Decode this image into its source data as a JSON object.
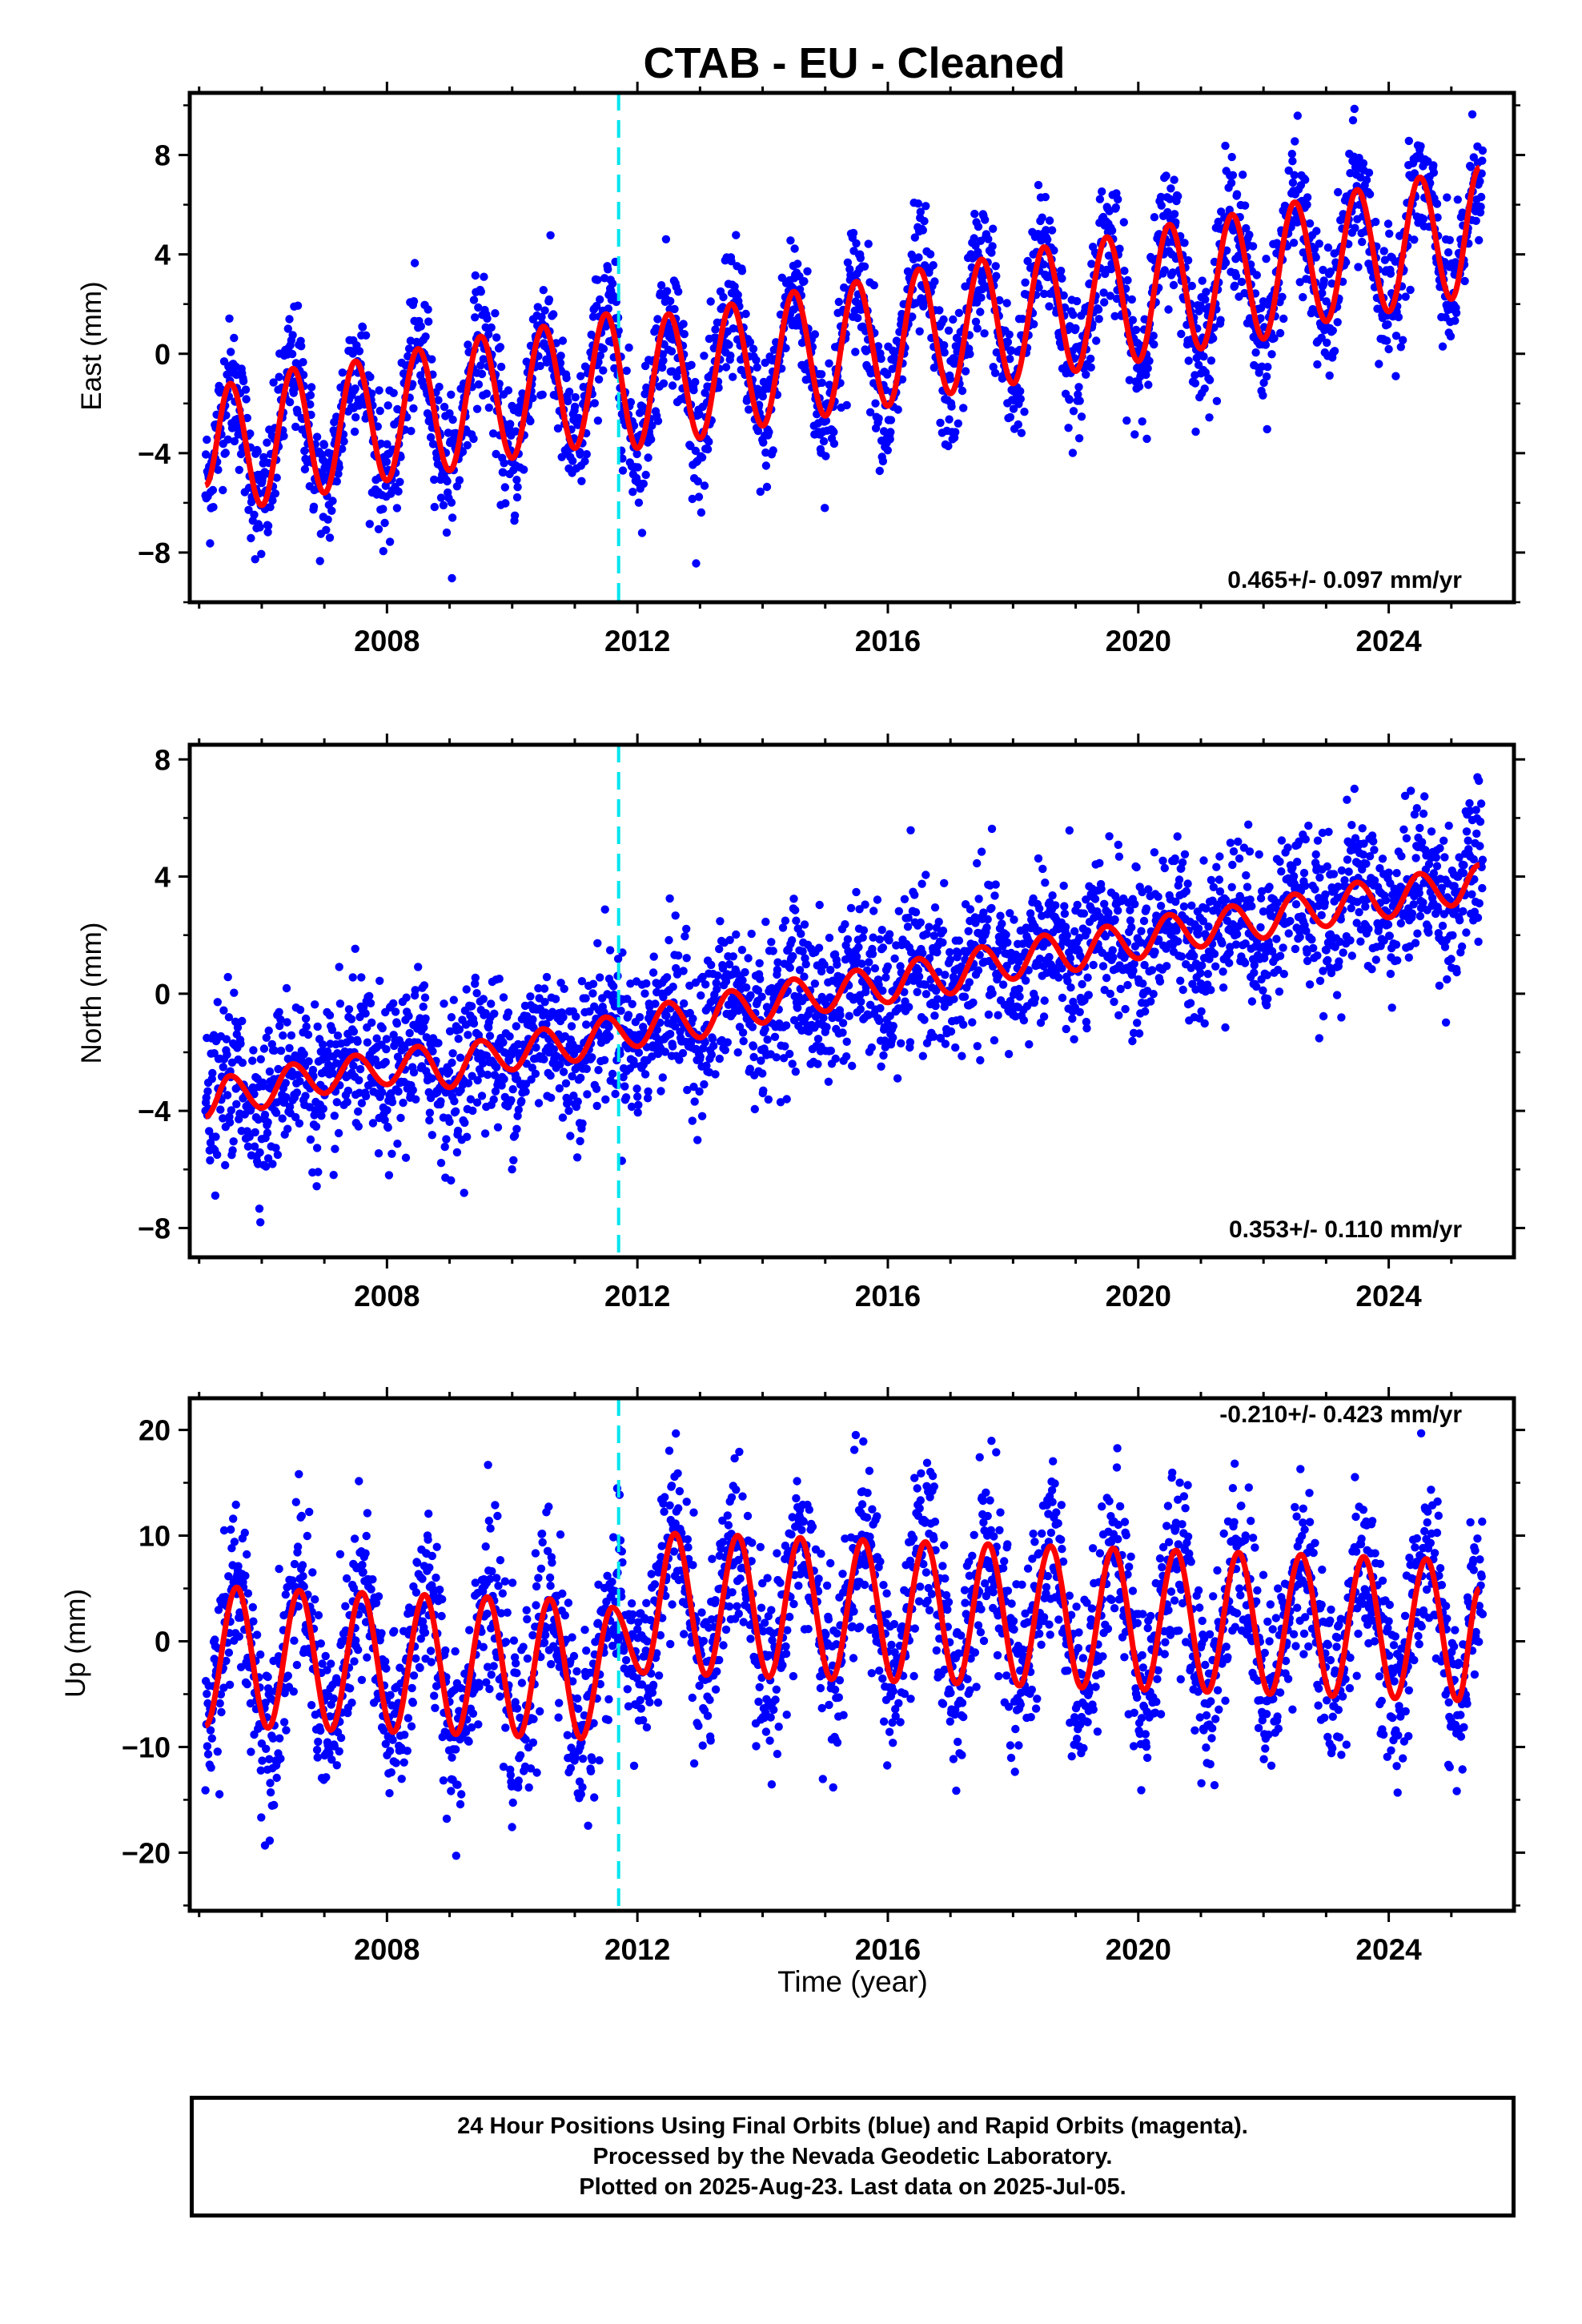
{
  "title": "CTAB  - EU - Cleaned",
  "footer": {
    "lines": [
      "24 Hour Positions Using Final Orbits (blue) and Rapid Orbits (magenta).",
      "Processed by the Nevada Geodetic Laboratory.",
      "Plotted on 2025-Aug-23. Last data on 2025-Jul-05."
    ]
  },
  "colors": {
    "points": "#0000ff",
    "model": "#ff0000",
    "event_line": "#00e5ee",
    "frame": "#000000"
  },
  "chart_data": [
    {
      "type": "scatter",
      "ylabel": "East (mm)",
      "xlabel": "",
      "xlim": [
        2004.85,
        2026.0
      ],
      "ylim": [
        -10,
        10.5
      ],
      "yticks": [
        -8,
        -4,
        0,
        4,
        8
      ],
      "xticks": [
        2008,
        2012,
        2016,
        2020,
        2024
      ],
      "rate_label": "0.465+/- 0.097 mm/yr",
      "rate_position": "bottom-right",
      "event_line_x": 2011.7,
      "data_start": 2005.1,
      "data_end": 2025.5,
      "model": {
        "points": [
          [
            2005.1,
            -5.3
          ],
          [
            2005.5,
            -1.2
          ],
          [
            2006.0,
            -6.1
          ],
          [
            2006.5,
            -0.6
          ],
          [
            2007.0,
            -5.6
          ],
          [
            2007.5,
            -0.3
          ],
          [
            2008.0,
            -5.1
          ],
          [
            2008.5,
            0.2
          ],
          [
            2009.0,
            -4.7
          ],
          [
            2009.5,
            0.7
          ],
          [
            2010.0,
            -4.2
          ],
          [
            2010.5,
            1.1
          ],
          [
            2011.0,
            -3.8
          ],
          [
            2011.5,
            1.6
          ],
          [
            2012.0,
            -3.8
          ],
          [
            2012.5,
            1.6
          ],
          [
            2013.0,
            -3.4
          ],
          [
            2013.5,
            2.0
          ],
          [
            2014.0,
            -2.9
          ],
          [
            2014.5,
            2.5
          ],
          [
            2015.0,
            -2.5
          ],
          [
            2015.5,
            2.9
          ],
          [
            2016.0,
            -2.1
          ],
          [
            2016.5,
            3.4
          ],
          [
            2017.0,
            -1.6
          ],
          [
            2017.5,
            3.8
          ],
          [
            2018.0,
            -1.2
          ],
          [
            2018.5,
            4.3
          ],
          [
            2019.0,
            -0.7
          ],
          [
            2019.5,
            4.7
          ],
          [
            2020.0,
            -0.3
          ],
          [
            2020.5,
            5.2
          ],
          [
            2021.0,
            0.2
          ],
          [
            2021.5,
            5.6
          ],
          [
            2022.0,
            0.6
          ],
          [
            2022.5,
            6.1
          ],
          [
            2023.0,
            1.3
          ],
          [
            2023.5,
            6.6
          ],
          [
            2024.0,
            1.7
          ],
          [
            2024.5,
            7.1
          ],
          [
            2025.0,
            2.2
          ],
          [
            2025.45,
            7.5
          ]
        ]
      },
      "scatter_amplitude": 2.5,
      "sigma": 1.3
    },
    {
      "type": "scatter",
      "ylabel": "North (mm)",
      "xlabel": "",
      "xlim": [
        2004.85,
        2026.0
      ],
      "ylim": [
        -9,
        8.5
      ],
      "yticks": [
        -8,
        -4,
        0,
        4,
        8
      ],
      "xticks": [
        2008,
        2012,
        2016,
        2020,
        2024
      ],
      "rate_label": "0.353+/- 0.110 mm/yr",
      "rate_position": "bottom-right",
      "event_line_x": 2011.7,
      "data_start": 2005.1,
      "data_end": 2025.5,
      "model": {
        "points": [
          [
            2005.1,
            -4.2
          ],
          [
            2005.5,
            -2.8
          ],
          [
            2006.0,
            -3.9
          ],
          [
            2006.5,
            -2.4
          ],
          [
            2007.0,
            -3.4
          ],
          [
            2007.5,
            -2.1
          ],
          [
            2008.0,
            -3.1
          ],
          [
            2008.5,
            -1.8
          ],
          [
            2009.0,
            -3.2
          ],
          [
            2009.5,
            -1.6
          ],
          [
            2010.0,
            -2.6
          ],
          [
            2010.5,
            -1.2
          ],
          [
            2011.0,
            -2.3
          ],
          [
            2011.5,
            -0.8
          ],
          [
            2012.0,
            -1.8
          ],
          [
            2012.5,
            -0.3
          ],
          [
            2013.0,
            -1.5
          ],
          [
            2013.5,
            0.1
          ],
          [
            2014.0,
            -1.0
          ],
          [
            2014.5,
            0.5
          ],
          [
            2015.0,
            -0.6
          ],
          [
            2015.5,
            0.8
          ],
          [
            2016.0,
            -0.3
          ],
          [
            2016.5,
            1.2
          ],
          [
            2017.0,
            0.0
          ],
          [
            2017.5,
            1.6
          ],
          [
            2018.0,
            0.5
          ],
          [
            2018.5,
            2.0
          ],
          [
            2019.0,
            0.8
          ],
          [
            2019.5,
            2.3
          ],
          [
            2020.0,
            1.2
          ],
          [
            2020.5,
            2.7
          ],
          [
            2021.0,
            1.6
          ],
          [
            2021.5,
            3.0
          ],
          [
            2022.0,
            1.9
          ],
          [
            2022.5,
            3.4
          ],
          [
            2023.0,
            2.3
          ],
          [
            2023.5,
            3.8
          ],
          [
            2024.0,
            2.6
          ],
          [
            2024.5,
            4.1
          ],
          [
            2025.0,
            3.0
          ],
          [
            2025.45,
            4.4
          ]
        ]
      },
      "scatter_amplitude": 1.0,
      "sigma": 1.3
    },
    {
      "type": "scatter",
      "ylabel": "Up (mm)",
      "xlabel": "Time (year)",
      "xlim": [
        2004.85,
        2026.0
      ],
      "ylim": [
        -25.5,
        23
      ],
      "yticks": [
        -20,
        -10,
        0,
        10,
        20
      ],
      "xticks": [
        2008,
        2012,
        2016,
        2020,
        2024
      ],
      "rate_label": "-0.210+/- 0.423 mm/yr",
      "rate_position": "top-right",
      "event_line_x": 2011.7,
      "data_start": 2005.1,
      "data_end": 2025.5,
      "model": {
        "points": [
          [
            2005.1,
            -8.0
          ],
          [
            2005.6,
            5.1
          ],
          [
            2006.1,
            -8.2
          ],
          [
            2006.6,
            4.8
          ],
          [
            2007.1,
            -8.4
          ],
          [
            2007.6,
            4.6
          ],
          [
            2008.1,
            -8.6
          ],
          [
            2008.6,
            4.4
          ],
          [
            2009.1,
            -8.8
          ],
          [
            2009.6,
            4.2
          ],
          [
            2010.1,
            -9.0
          ],
          [
            2010.6,
            4.0
          ],
          [
            2011.1,
            -9.2
          ],
          [
            2011.6,
            3.2
          ],
          [
            2012.1,
            -3.0
          ],
          [
            2012.6,
            10.2
          ],
          [
            2013.1,
            -3.2
          ],
          [
            2013.6,
            10.0
          ],
          [
            2014.1,
            -3.4
          ],
          [
            2014.6,
            9.8
          ],
          [
            2015.1,
            -3.6
          ],
          [
            2015.6,
            9.6
          ],
          [
            2016.1,
            -3.8
          ],
          [
            2016.6,
            9.4
          ],
          [
            2017.1,
            -4.0
          ],
          [
            2017.6,
            9.2
          ],
          [
            2018.1,
            -4.2
          ],
          [
            2018.6,
            9.0
          ],
          [
            2019.1,
            -4.4
          ],
          [
            2019.6,
            8.8
          ],
          [
            2020.1,
            -4.6
          ],
          [
            2020.6,
            8.6
          ],
          [
            2021.1,
            -4.8
          ],
          [
            2021.6,
            8.4
          ],
          [
            2022.1,
            -5.0
          ],
          [
            2022.6,
            8.2
          ],
          [
            2023.1,
            -5.2
          ],
          [
            2023.6,
            8.0
          ],
          [
            2024.1,
            -5.4
          ],
          [
            2024.6,
            7.8
          ],
          [
            2025.1,
            -5.6
          ],
          [
            2025.45,
            5.0
          ]
        ]
      },
      "scatter_amplitude": 3.0,
      "sigma": 4.2
    }
  ]
}
